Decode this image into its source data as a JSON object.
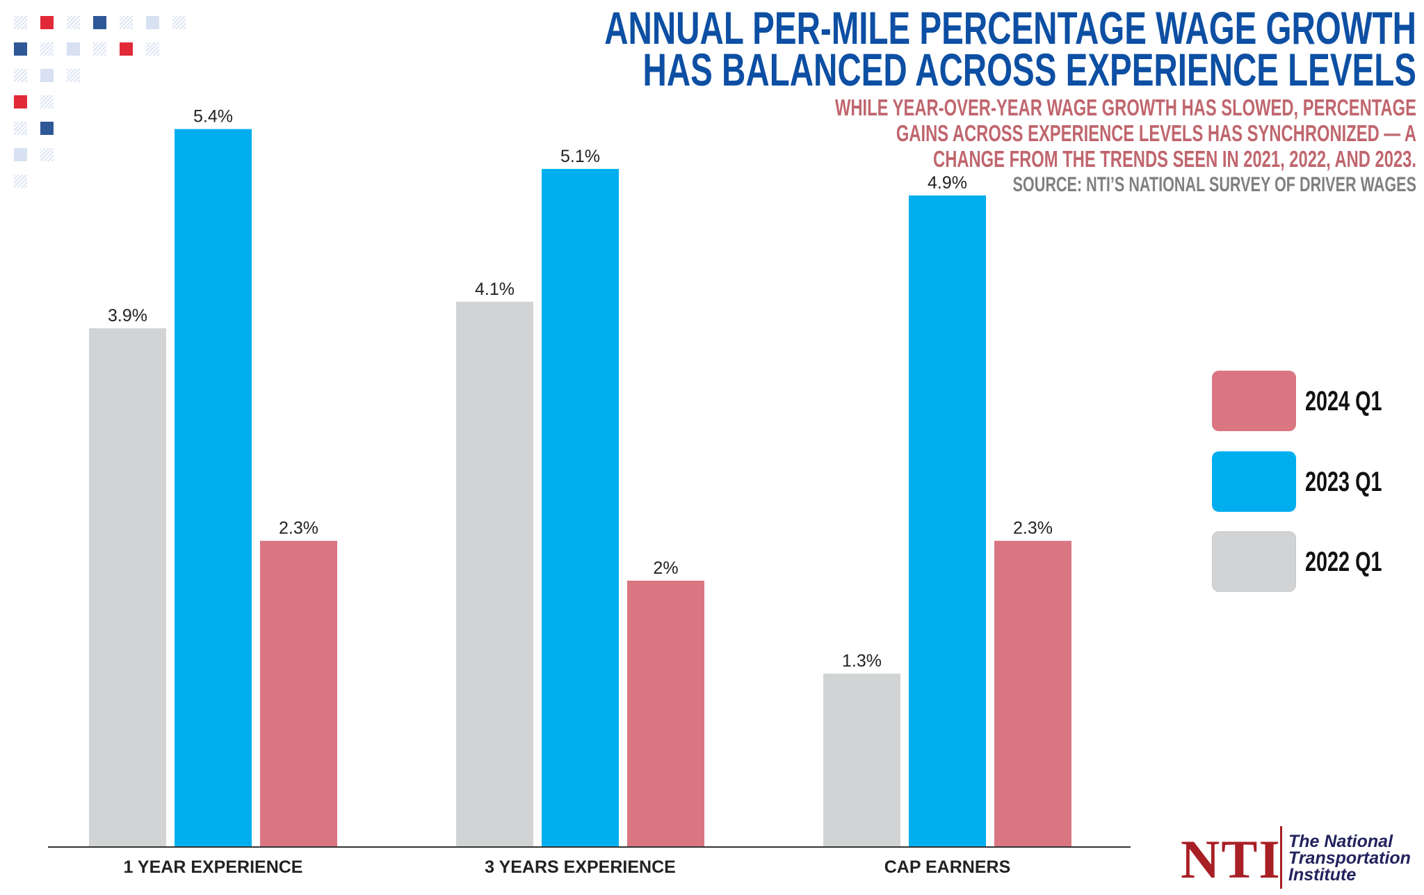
{
  "title": [
    "ANNUAL PER-MILE PERCENTAGE WAGE GROWTH",
    "HAS BALANCED ACROSS EXPERIENCE LEVELS"
  ],
  "subtitle": [
    "WHILE YEAR-OVER-YEAR WAGE GROWTH HAS SLOWED, PERCENTAGE",
    "GAINS ACROSS EXPERIENCE LEVELS HAS SYNCHRONIZED — A",
    "CHANGE FROM THE TRENDS SEEN IN 2021, 2022, AND 2023."
  ],
  "source": "SOURCE: NTI’S NATIONAL SURVEY OF DRIVER WAGES",
  "colors": {
    "title": "#0d4fa3",
    "subtitle": "#c0666e",
    "source": "#808080",
    "2022 Q1": "#d1d3d4",
    "2023 Q1": "#00aeef",
    "2024 Q1": "#d97682"
  },
  "logo": {
    "mark": "NTI",
    "name": [
      "The National",
      "Transportation",
      "Institute"
    ]
  },
  "chart_data": {
    "type": "bar",
    "title": "ANNUAL PER-MILE PERCENTAGE WAGE GROWTH HAS BALANCED ACROSS EXPERIENCE LEVELS",
    "categories": [
      "1 YEAR EXPERIENCE",
      "3 YEARS EXPERIENCE",
      "CAP EARNERS"
    ],
    "series": [
      {
        "name": "2022 Q1",
        "color": "#d1d3d4",
        "values": [
          3.9,
          4.1,
          1.3
        ],
        "labels": [
          "3.9%",
          "4.1%",
          "1.3%"
        ]
      },
      {
        "name": "2023 Q1",
        "color": "#00aeef",
        "values": [
          5.4,
          5.1,
          4.9
        ],
        "labels": [
          "5.4%",
          "5.1%",
          "4.9%"
        ]
      },
      {
        "name": "2024 Q1",
        "color": "#d97682",
        "values": [
          2.3,
          2.0,
          2.3
        ],
        "labels": [
          "2.3%",
          "2%",
          "2.3%"
        ]
      }
    ],
    "legend": {
      "placement": "right",
      "order": [
        "2024 Q1",
        "2023 Q1",
        "2022 Q1"
      ]
    },
    "ylim": [
      0,
      5.4
    ],
    "grid": false,
    "xlabel": "",
    "ylabel": ""
  }
}
